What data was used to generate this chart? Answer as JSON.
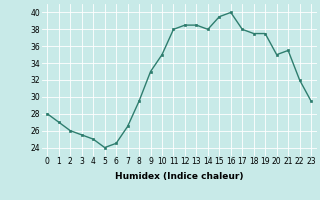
{
  "x": [
    0,
    1,
    2,
    3,
    4,
    5,
    6,
    7,
    8,
    9,
    10,
    11,
    12,
    13,
    14,
    15,
    16,
    17,
    18,
    19,
    20,
    21,
    22,
    23
  ],
  "y": [
    28,
    27,
    26,
    25.5,
    25,
    24,
    24.5,
    26.5,
    29.5,
    33,
    35,
    38,
    38.5,
    38.5,
    38,
    39.5,
    40,
    38,
    37.5,
    37.5,
    35,
    35.5,
    32,
    29.5
  ],
  "line_color": "#2e7d6e",
  "marker_color": "#2e7d6e",
  "bg_color": "#c8eae8",
  "grid_color": "#ffffff",
  "xlabel": "Humidex (Indice chaleur)",
  "xlabel_fontsize": 6.5,
  "ylabel_ticks": [
    24,
    26,
    28,
    30,
    32,
    34,
    36,
    38,
    40
  ],
  "ylim": [
    23.0,
    41.0
  ],
  "xlim": [
    -0.5,
    23.5
  ],
  "tick_fontsize": 5.5
}
